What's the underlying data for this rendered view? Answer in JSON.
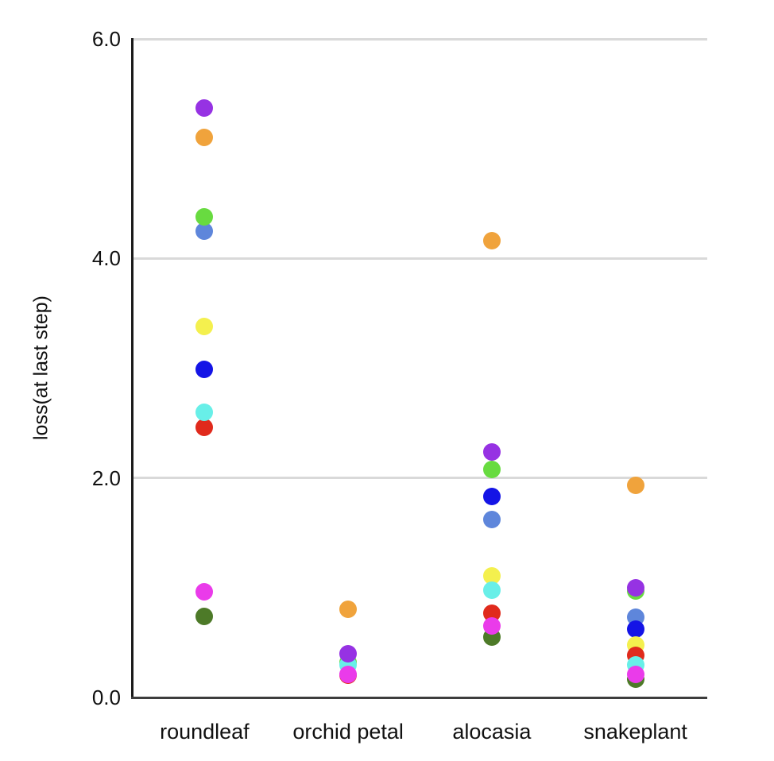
{
  "chart_data": {
    "type": "scatter",
    "title": "",
    "xlabel": "",
    "ylabel": "loss(at last step)",
    "categories": [
      "roundleaf",
      "orchid petal",
      "alocasia",
      "snakeplant"
    ],
    "ylim": [
      0.0,
      6.0
    ],
    "y_ticks": [
      {
        "value": 0.0,
        "label": "0.0"
      },
      {
        "value": 2.0,
        "label": "2.0"
      },
      {
        "value": 4.0,
        "label": "4.0"
      },
      {
        "value": 6.0,
        "label": "6.0"
      }
    ],
    "gridline_values": [
      2.0,
      4.0,
      6.0
    ],
    "grid": "horizontal",
    "legend": "none",
    "colors": {
      "purple": "#9632E3",
      "orange": "#F0A33C",
      "green": "#68DB40",
      "cornflower_blue": "#5E86DB",
      "yellow": "#F4F04E",
      "blue": "#1414E6",
      "cyan": "#68EFE8",
      "red": "#E02A1C",
      "magenta": "#EA3BEA",
      "dark_green": "#4D7A28"
    },
    "series": [
      {
        "name": "purple",
        "color_key": "purple",
        "values": [
          5.37,
          0.4,
          2.24,
          1.0
        ]
      },
      {
        "name": "orange",
        "color_key": "orange",
        "values": [
          5.1,
          0.8,
          4.16,
          1.93
        ]
      },
      {
        "name": "green",
        "color_key": "green",
        "values": [
          4.38,
          0.32,
          2.08,
          0.97
        ]
      },
      {
        "name": "cornflower-blue",
        "color_key": "cornflower_blue",
        "values": [
          4.25,
          null,
          1.62,
          0.73
        ]
      },
      {
        "name": "yellow",
        "color_key": "yellow",
        "values": [
          3.38,
          null,
          1.11,
          0.48
        ]
      },
      {
        "name": "blue",
        "color_key": "blue",
        "values": [
          2.99,
          null,
          1.83,
          0.62
        ]
      },
      {
        "name": "cyan",
        "color_key": "cyan",
        "values": [
          2.6,
          0.3,
          0.98,
          0.3
        ]
      },
      {
        "name": "red",
        "color_key": "red",
        "values": [
          2.46,
          0.2,
          0.77,
          0.38
        ]
      },
      {
        "name": "magenta",
        "color_key": "magenta",
        "values": [
          0.96,
          0.21,
          0.65,
          0.21
        ]
      },
      {
        "name": "dark-green",
        "color_key": "dark_green",
        "values": [
          0.74,
          null,
          0.55,
          0.17
        ]
      }
    ],
    "draw_order": [
      [
        0,
        1,
        3,
        2,
        4,
        5,
        7,
        6,
        8,
        9
      ],
      [
        1,
        2,
        7,
        6,
        0,
        9,
        8
      ],
      [
        1,
        2,
        0,
        5,
        3,
        4,
        6,
        7,
        9,
        8
      ],
      [
        1,
        2,
        0,
        3,
        5,
        4,
        7,
        6,
        9,
        8
      ]
    ]
  }
}
